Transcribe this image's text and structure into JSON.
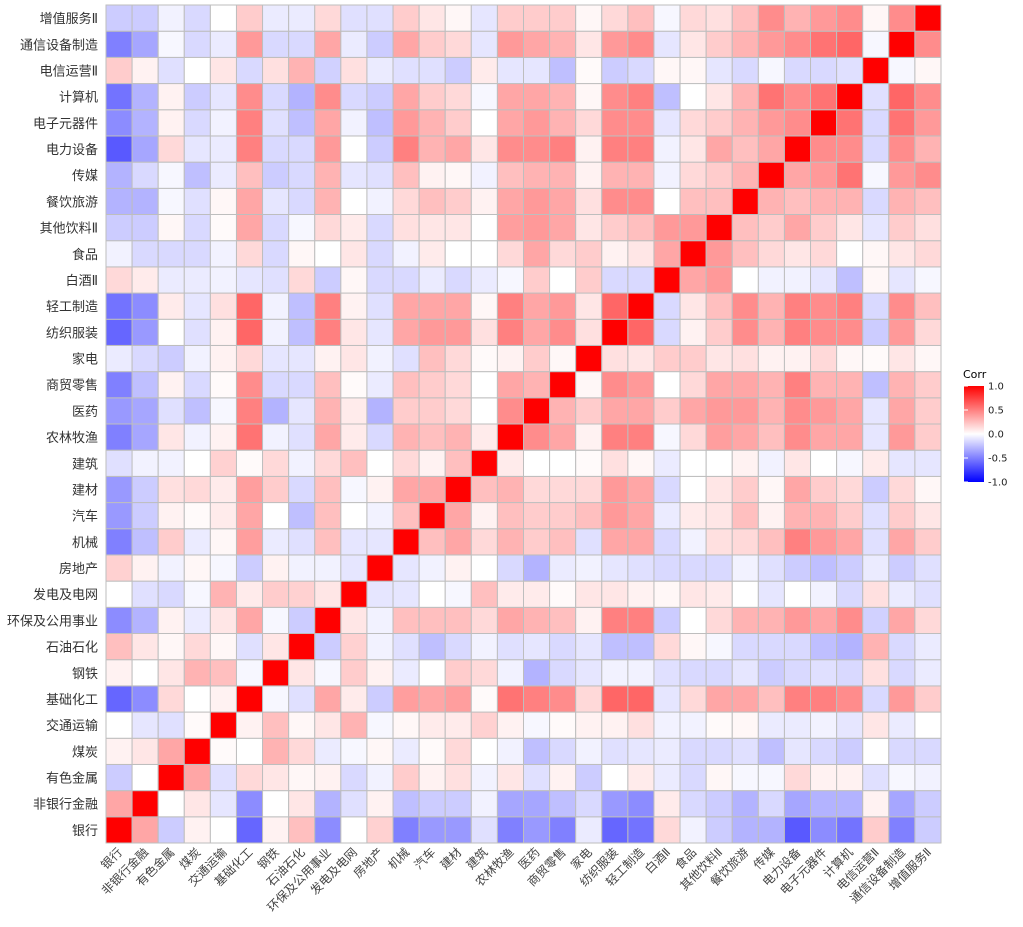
{
  "chart_data": {
    "type": "heatmap",
    "title": "",
    "labels": [
      "银行",
      "非银行金融",
      "有色金属",
      "煤炭",
      "交通运输",
      "基础化工",
      "钢铁",
      "石油石化",
      "环保及公用事业",
      "发电及电网",
      "房地产",
      "机械",
      "汽车",
      "建材",
      "建筑",
      "农林牧渔",
      "医药",
      "商贸零售",
      "家电",
      "纺织服装",
      "轻工制造",
      "白酒Ⅱ",
      "食品",
      "其他饮料Ⅱ",
      "餐饮旅游",
      "传媒",
      "电力设备",
      "电子元器件",
      "计算机",
      "电信运营Ⅱ",
      "通信设备制造",
      "增值服务Ⅱ"
    ],
    "matrix_lower_triangle": [
      [
        1
      ],
      [
        0.35,
        1
      ],
      [
        -0.2,
        0.0,
        1
      ],
      [
        0.05,
        0.1,
        0.35,
        1
      ],
      [
        0.0,
        -0.1,
        -0.12,
        0.02,
        1
      ],
      [
        -0.6,
        -0.45,
        0.15,
        0.0,
        0.05,
        1
      ],
      [
        0.05,
        0.0,
        0.1,
        0.3,
        0.25,
        -0.03,
        1
      ],
      [
        0.25,
        0.1,
        0.03,
        0.15,
        0.03,
        -0.12,
        0.1,
        1
      ],
      [
        -0.45,
        -0.3,
        0.05,
        -0.08,
        0.1,
        0.35,
        -0.03,
        -0.2,
        1
      ],
      [
        0.0,
        -0.12,
        -0.15,
        -0.03,
        0.3,
        0.08,
        0.2,
        0.18,
        0.1,
        1
      ],
      [
        0.18,
        0.05,
        -0.05,
        0.03,
        -0.03,
        -0.2,
        0.05,
        -0.05,
        -0.05,
        -0.1,
        1
      ],
      [
        -0.5,
        -0.25,
        0.2,
        -0.08,
        0.03,
        0.38,
        -0.08,
        -0.12,
        0.25,
        -0.1,
        -0.1,
        1
      ],
      [
        -0.4,
        -0.2,
        0.05,
        0.02,
        0.08,
        0.35,
        0.0,
        -0.25,
        0.25,
        0.0,
        -0.05,
        0.25,
        1
      ],
      [
        -0.4,
        -0.2,
        0.12,
        0.15,
        0.08,
        0.38,
        0.2,
        -0.15,
        0.25,
        -0.03,
        0.05,
        0.35,
        0.35,
        1
      ],
      [
        -0.12,
        -0.05,
        -0.05,
        0.0,
        0.18,
        0.02,
        0.15,
        -0.05,
        0.15,
        0.25,
        0.0,
        0.15,
        0.05,
        0.25,
        1
      ],
      [
        -0.5,
        -0.35,
        0.1,
        -0.05,
        0.05,
        0.55,
        -0.05,
        -0.12,
        0.35,
        0.08,
        -0.15,
        0.3,
        0.25,
        0.3,
        0.08,
        1
      ],
      [
        -0.4,
        -0.35,
        -0.12,
        -0.25,
        -0.03,
        0.5,
        -0.3,
        -0.1,
        0.3,
        0.08,
        -0.3,
        0.2,
        0.2,
        0.15,
        0.0,
        0.45,
        1
      ],
      [
        -0.5,
        -0.25,
        0.05,
        -0.15,
        0.02,
        0.45,
        -0.15,
        -0.15,
        0.25,
        0.02,
        -0.08,
        0.25,
        0.2,
        0.15,
        0.0,
        0.35,
        0.3,
        1
      ],
      [
        -0.08,
        -0.15,
        -0.2,
        -0.05,
        0.05,
        0.15,
        -0.1,
        -0.1,
        0.05,
        0.1,
        -0.05,
        -0.12,
        0.25,
        0.15,
        0.02,
        0.05,
        0.2,
        0.03,
        1
      ],
      [
        -0.6,
        -0.4,
        0.0,
        -0.12,
        0.05,
        0.6,
        -0.05,
        -0.25,
        0.5,
        0.1,
        -0.1,
        0.35,
        0.4,
        0.4,
        0.12,
        0.5,
        0.35,
        0.45,
        0.12,
        1
      ],
      [
        -0.55,
        -0.45,
        0.08,
        -0.1,
        0.12,
        0.6,
        -0.05,
        -0.25,
        0.5,
        0.05,
        -0.12,
        0.35,
        0.35,
        0.35,
        0.03,
        0.5,
        0.35,
        0.4,
        0.1,
        0.6,
        1
      ],
      [
        0.15,
        0.08,
        -0.08,
        -0.08,
        -0.05,
        -0.1,
        -0.12,
        0.15,
        -0.2,
        0.03,
        -0.15,
        -0.15,
        -0.08,
        -0.15,
        -0.08,
        -0.03,
        0.2,
        0.0,
        0.2,
        -0.15,
        -0.15,
        1
      ],
      [
        -0.05,
        -0.15,
        -0.15,
        -0.15,
        -0.05,
        0.15,
        -0.15,
        0.03,
        0.0,
        0.1,
        -0.15,
        -0.05,
        0.08,
        0.0,
        0.0,
        0.15,
        0.35,
        0.15,
        0.2,
        0.05,
        0.1,
        0.35,
        1
      ],
      [
        -0.2,
        -0.2,
        0.03,
        -0.15,
        0.02,
        0.35,
        -0.15,
        -0.03,
        0.15,
        0.08,
        -0.15,
        0.12,
        0.1,
        0.1,
        0.0,
        0.38,
        0.4,
        0.35,
        0.1,
        0.2,
        0.25,
        0.4,
        0.4,
        1
      ],
      [
        -0.3,
        -0.3,
        -0.03,
        -0.12,
        0.03,
        0.35,
        -0.1,
        -0.15,
        0.3,
        0.0,
        -0.05,
        0.15,
        0.25,
        0.2,
        0.05,
        0.35,
        0.4,
        0.35,
        0.12,
        0.45,
        0.45,
        0.0,
        0.25,
        0.25,
        1
      ],
      [
        -0.3,
        -0.15,
        -0.03,
        -0.25,
        -0.08,
        0.25,
        -0.2,
        -0.15,
        0.3,
        -0.1,
        -0.12,
        0.25,
        0.05,
        0.03,
        -0.05,
        0.25,
        0.3,
        0.3,
        0.05,
        0.3,
        0.3,
        -0.05,
        0.15,
        0.2,
        0.3,
        1
      ],
      [
        -0.65,
        -0.35,
        0.15,
        -0.1,
        -0.08,
        0.5,
        -0.15,
        -0.15,
        0.4,
        0.0,
        -0.2,
        0.5,
        0.3,
        0.35,
        0.1,
        0.45,
        0.45,
        0.5,
        0.05,
        0.5,
        0.5,
        -0.05,
        0.1,
        0.35,
        0.25,
        0.35,
        1
      ],
      [
        -0.45,
        -0.3,
        0.05,
        -0.15,
        -0.05,
        0.5,
        -0.12,
        -0.25,
        0.35,
        -0.05,
        -0.25,
        0.4,
        0.3,
        0.2,
        0.0,
        0.35,
        0.4,
        0.3,
        0.15,
        0.45,
        0.45,
        -0.1,
        0.15,
        0.2,
        0.3,
        0.4,
        0.45,
        1
      ],
      [
        -0.55,
        -0.3,
        0.05,
        -0.2,
        -0.1,
        0.45,
        -0.15,
        -0.3,
        0.45,
        -0.15,
        -0.2,
        0.35,
        0.2,
        0.15,
        -0.03,
        0.35,
        0.35,
        0.3,
        0.03,
        0.45,
        0.5,
        -0.25,
        0.0,
        0.1,
        0.3,
        0.55,
        0.45,
        0.55,
        1
      ],
      [
        0.2,
        0.05,
        -0.12,
        0.0,
        0.1,
        -0.15,
        0.12,
        0.3,
        -0.18,
        0.12,
        -0.08,
        -0.12,
        -0.12,
        -0.2,
        0.08,
        -0.1,
        -0.1,
        -0.25,
        0.02,
        -0.2,
        -0.15,
        0.03,
        0.03,
        -0.1,
        -0.15,
        -0.03,
        -0.15,
        -0.15,
        -0.12,
        1
      ],
      [
        -0.5,
        -0.35,
        -0.03,
        -0.15,
        -0.08,
        0.4,
        -0.15,
        -0.15,
        0.35,
        -0.08,
        -0.2,
        0.35,
        0.2,
        0.15,
        -0.1,
        0.4,
        0.35,
        0.3,
        0.1,
        0.4,
        0.45,
        -0.1,
        0.1,
        0.2,
        0.3,
        0.4,
        0.45,
        0.55,
        0.6,
        -0.03,
        1
      ],
      [
        -0.2,
        -0.2,
        -0.05,
        -0.15,
        0.0,
        0.2,
        -0.08,
        -0.08,
        0.15,
        -0.12,
        -0.12,
        0.2,
        0.1,
        0.03,
        -0.1,
        0.2,
        0.2,
        0.2,
        0.03,
        0.15,
        0.25,
        -0.03,
        0.15,
        0.12,
        0.25,
        0.45,
        0.3,
        0.4,
        0.45,
        0.03,
        0.45,
        1
      ]
    ],
    "value_range": [
      -1,
      1
    ],
    "legend": {
      "title": "Corr",
      "ticks": [
        "1.0",
        "0.5",
        "0.0",
        "-0.5",
        "-1.0"
      ],
      "tick_values": [
        1,
        0.5,
        0,
        -0.5,
        -1
      ],
      "placement": "right",
      "colors": {
        "low": "#0000FF",
        "mid": "#FFFFFF",
        "high": "#FF0000"
      }
    },
    "grid_color": "#BEBEBE",
    "xlabel": "",
    "ylabel": ""
  }
}
